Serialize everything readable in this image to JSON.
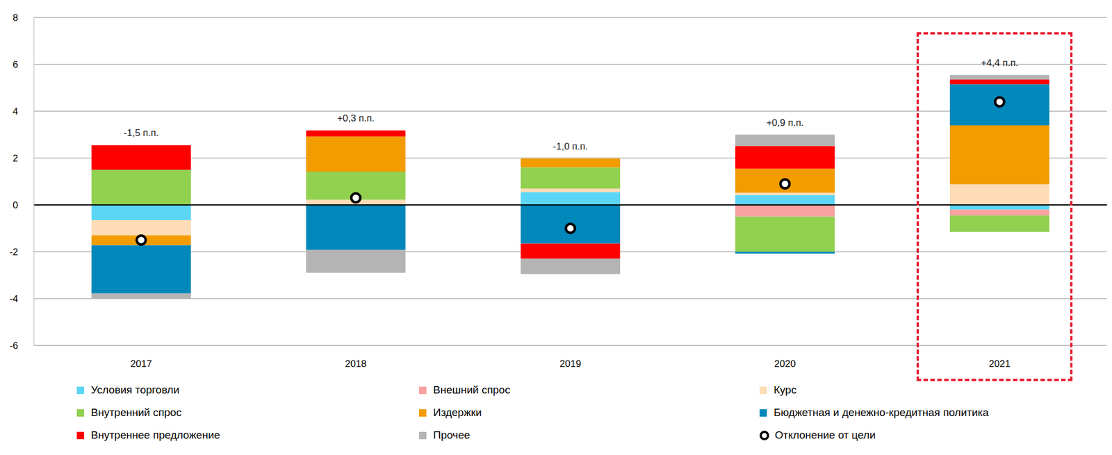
{
  "chart_data": {
    "type": "bar",
    "stacked": true,
    "grid": true,
    "legend": "bottom",
    "categories": [
      "2017",
      "2018",
      "2019",
      "2020",
      "2021"
    ],
    "ylim": [
      -6,
      8
    ],
    "yticks": [
      -6,
      -4,
      -2,
      0,
      2,
      4,
      6,
      8
    ],
    "series": [
      {
        "name": "Условия торговли",
        "color": "#5cd6f4",
        "values": [
          -0.65,
          0,
          0.55,
          0.42,
          -0.2
        ]
      },
      {
        "name": "Внешний спрос",
        "color": "#f7a1a1",
        "values": [
          0,
          0,
          0,
          -0.5,
          -0.25
        ]
      },
      {
        "name": "Курс",
        "color": "#fddcb6",
        "values": [
          -0.65,
          0.22,
          0.15,
          0.1,
          0.88
        ]
      },
      {
        "name": "Внутренний спрос",
        "color": "#92d050",
        "values": [
          1.5,
          1.2,
          0.9,
          -1.5,
          -0.7
        ]
      },
      {
        "name": "Издержки",
        "color": "#f29c00",
        "values": [
          -0.42,
          1.5,
          0.38,
          1.03,
          2.52
        ]
      },
      {
        "name": "Бюджетная и денежно-кредитная политика",
        "color": "#0088bb",
        "values": [
          -2.06,
          -1.92,
          -1.65,
          -0.08,
          1.75
        ]
      },
      {
        "name": "Внутреннее предложение",
        "color": "#ff0000",
        "values": [
          1.05,
          0.26,
          -0.65,
          0.97,
          0.2
        ]
      },
      {
        "name": "Прочее",
        "color": "#b4b4b4",
        "values": [
          -0.22,
          -0.98,
          -0.65,
          0.48,
          0.2
        ]
      },
      {
        "name": "Отклонение от цели",
        "type": "scatter",
        "marker": "circle",
        "color": "#000000",
        "values": [
          -1.5,
          0.3,
          -1.0,
          0.9,
          4.4
        ],
        "value_labels": [
          "-1,5 п.п.",
          "+0,3 п.п.",
          "-1,0 п.п.",
          "+0,9 п.п.",
          "+4,4 п.п."
        ]
      }
    ]
  }
}
